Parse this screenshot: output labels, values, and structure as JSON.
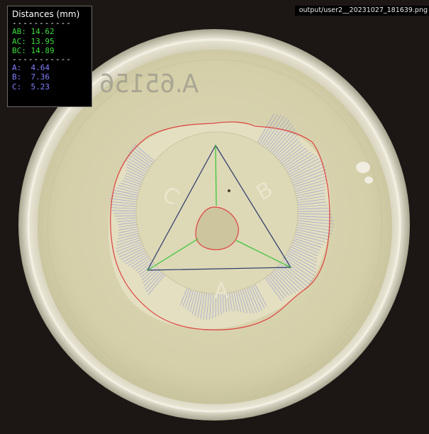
{
  "overlay": {
    "title": "Distances (mm)",
    "separator": "-----------",
    "pair_distances": [
      {
        "label": "AB:",
        "value": "14.62"
      },
      {
        "label": "AC:",
        "value": "13.95"
      },
      {
        "label": "BC:",
        "value": "14.89"
      }
    ],
    "point_distances": [
      {
        "label": "A:",
        "value": "4.64"
      },
      {
        "label": "B:",
        "value": "7.36"
      },
      {
        "label": "C:",
        "value": "5.23"
      }
    ]
  },
  "filename": "output/user2__20231027_181639.png",
  "plate": {
    "label": "A.65156",
    "zone_letters": [
      "A",
      "B",
      "C"
    ]
  },
  "colors": {
    "background": "#1c1714",
    "agar": "#d8d3ae",
    "contour": "#e04040",
    "triangle": "#2a3a6a",
    "center_lines": "#3cc83c",
    "hatch": "#8a8ad8",
    "pair_text": "#3fdc3f",
    "point_text": "#8080ff"
  }
}
